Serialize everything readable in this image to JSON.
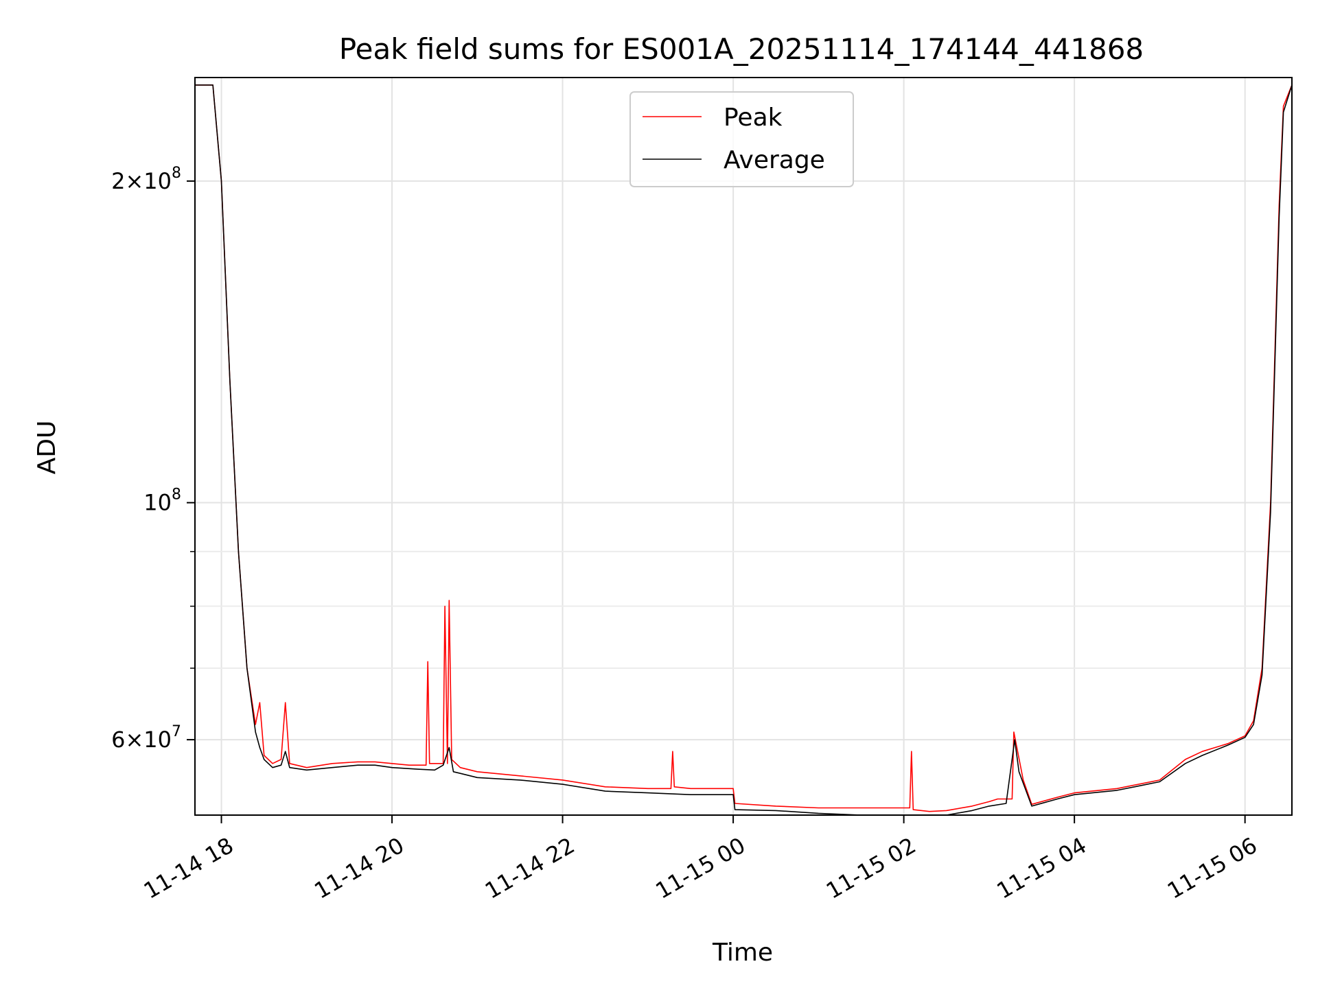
{
  "chart_data": {
    "type": "line",
    "title": "Peak field sums for ES001A_20251114_174144_441868",
    "xlabel": "Time",
    "ylabel": "ADU",
    "y_scale": "log",
    "ylim": [
      51000000,
      250000000
    ],
    "x_unit": "hours since 2025-11-14 00:00",
    "xlim": [
      17.69,
      30.55
    ],
    "x_ticks": [
      {
        "value": 18,
        "label": "11-14 18"
      },
      {
        "value": 20,
        "label": "11-14 20"
      },
      {
        "value": 22,
        "label": "11-14 22"
      },
      {
        "value": 24,
        "label": "11-15 00"
      },
      {
        "value": 26,
        "label": "11-15 02"
      },
      {
        "value": 28,
        "label": "11-15 04"
      },
      {
        "value": 30,
        "label": "11-15 06"
      }
    ],
    "y_major_ticks": [
      {
        "value": 60000000,
        "mantissa": "6",
        "exp": "7"
      },
      {
        "value": 100000000,
        "mantissa": "",
        "exp": "8"
      },
      {
        "value": 200000000,
        "mantissa": "2",
        "exp": "8"
      }
    ],
    "y_minor_ticks": [
      70000000,
      80000000,
      90000000
    ],
    "grid": true,
    "legend_position": "top-center",
    "series": [
      {
        "name": "Peak",
        "color": "#ff0000",
        "x": [
          17.69,
          17.9,
          18.0,
          18.1,
          18.2,
          18.3,
          18.4,
          18.45,
          18.5,
          18.6,
          18.7,
          18.75,
          18.8,
          19.0,
          19.3,
          19.6,
          19.8,
          20.0,
          20.2,
          20.4,
          20.42,
          20.44,
          20.6,
          20.62,
          20.65,
          20.67,
          20.7,
          20.8,
          21.0,
          21.5,
          22.0,
          22.5,
          23.0,
          23.27,
          23.29,
          23.31,
          23.5,
          24.0,
          24.02,
          24.5,
          25.0,
          25.5,
          25.9,
          26.07,
          26.09,
          26.11,
          26.3,
          26.5,
          26.8,
          27.0,
          27.1,
          27.27,
          27.29,
          27.4,
          27.5,
          27.8,
          28.0,
          28.5,
          29.0,
          29.3,
          29.5,
          29.8,
          30.0,
          30.1,
          30.2,
          30.3,
          30.4,
          30.45,
          30.55
        ],
        "y": [
          246000000,
          246000000,
          200000000,
          130000000,
          90000000,
          70000000,
          62000000,
          65000000,
          58000000,
          57000000,
          57500000,
          65000000,
          57000000,
          56500000,
          57000000,
          57200000,
          57200000,
          57000000,
          56800000,
          56800000,
          71000000,
          57000000,
          57000000,
          80000000,
          57000000,
          81000000,
          57500000,
          56500000,
          56000000,
          55500000,
          55000000,
          54200000,
          54000000,
          54000000,
          58500000,
          54200000,
          54000000,
          54000000,
          52300000,
          52000000,
          51800000,
          51800000,
          51800000,
          51800000,
          58500000,
          51600000,
          51400000,
          51500000,
          52000000,
          52500000,
          52800000,
          52800000,
          61000000,
          55000000,
          52200000,
          53000000,
          53500000,
          54000000,
          55000000,
          57500000,
          58500000,
          59500000,
          60500000,
          62500000,
          70000000,
          100000000,
          190000000,
          235000000,
          246000000
        ]
      },
      {
        "name": "Average",
        "color": "#000000",
        "x": [
          17.69,
          17.9,
          18.0,
          18.1,
          18.2,
          18.3,
          18.4,
          18.45,
          18.5,
          18.6,
          18.7,
          18.75,
          18.8,
          19.0,
          19.3,
          19.6,
          19.8,
          20.0,
          20.3,
          20.5,
          20.6,
          20.67,
          20.72,
          20.8,
          21.0,
          21.5,
          22.0,
          22.5,
          23.0,
          23.5,
          24.0,
          24.02,
          24.5,
          25.0,
          25.5,
          26.0,
          26.3,
          26.5,
          26.8,
          27.0,
          27.2,
          27.3,
          27.35,
          27.5,
          27.8,
          28.0,
          28.5,
          29.0,
          29.3,
          29.5,
          29.8,
          30.0,
          30.1,
          30.2,
          30.3,
          30.4,
          30.45,
          30.55
        ],
        "y": [
          246000000,
          246000000,
          200000000,
          130000000,
          90000000,
          70000000,
          61000000,
          59000000,
          57500000,
          56500000,
          56800000,
          58500000,
          56500000,
          56200000,
          56500000,
          56800000,
          56800000,
          56500000,
          56300000,
          56200000,
          56800000,
          59000000,
          56000000,
          55800000,
          55300000,
          55000000,
          54500000,
          53700000,
          53500000,
          53300000,
          53300000,
          51600000,
          51500000,
          51200000,
          51000000,
          51000000,
          50800000,
          51000000,
          51500000,
          52000000,
          52300000,
          60000000,
          56000000,
          52000000,
          52800000,
          53300000,
          53800000,
          54800000,
          57000000,
          58000000,
          59300000,
          60300000,
          62000000,
          69000000,
          98000000,
          185000000,
          232000000,
          246000000
        ]
      }
    ]
  }
}
